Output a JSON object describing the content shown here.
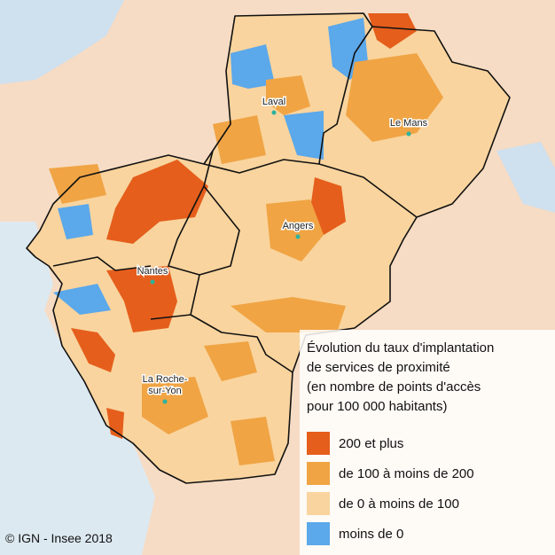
{
  "map": {
    "cities": [
      {
        "lines": [
          "Laval"
        ]
      },
      {
        "lines": [
          "Le Mans"
        ]
      },
      {
        "lines": [
          "Angers"
        ]
      },
      {
        "lines": [
          "Nantes"
        ]
      },
      {
        "lines": [
          "La Roche-",
          "sur-Yon"
        ]
      }
    ],
    "legend": {
      "title": [
        "Évolution du taux d'implantation",
        "de services de proximité",
        "(en nombre de points d'accès",
        "pour 100 000 habitants)"
      ],
      "items": [
        {
          "label": "200 et plus",
          "color": "#e55e1c"
        },
        {
          "label": "de 100 à moins de 200",
          "color": "#f0a444"
        },
        {
          "label": "de 0 à moins de 100",
          "color": "#f9d49e"
        },
        {
          "label": "moins de 0",
          "color": "#5ba8ea"
        }
      ]
    },
    "credit": "© IGN - Insee 2018"
  }
}
